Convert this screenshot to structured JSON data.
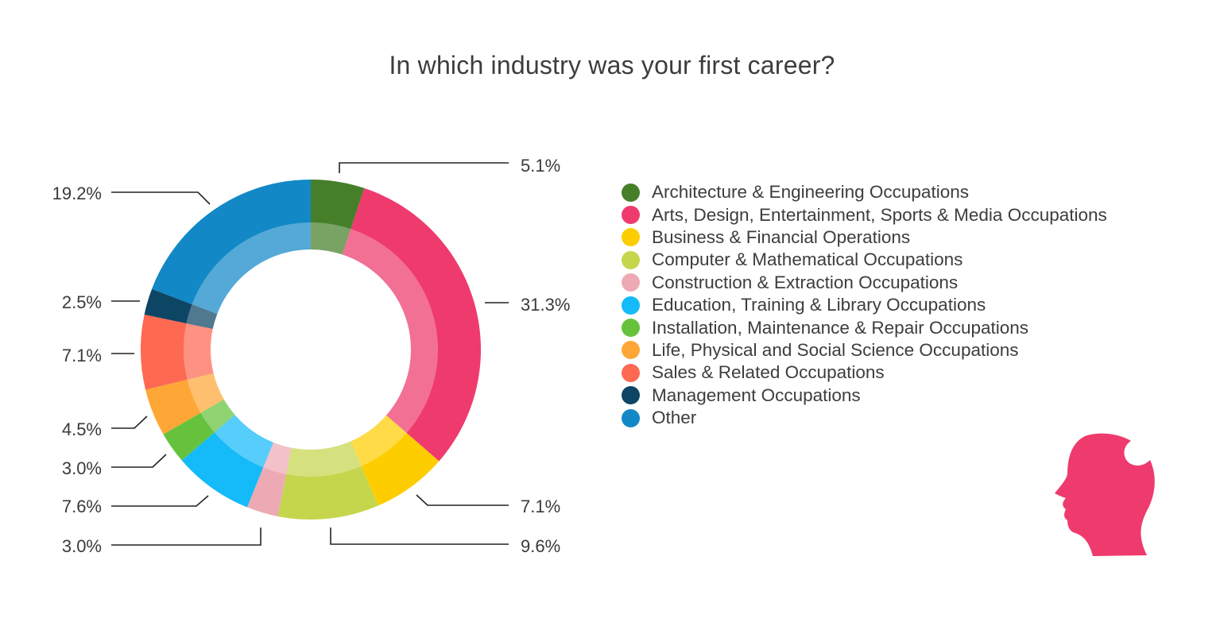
{
  "chart_data": {
    "type": "pie",
    "variant": "donut",
    "title": "In which industry was your first career?",
    "slices": [
      {
        "name": "Architecture & Engineering Occupations",
        "value": 5.1,
        "label": "5.1%",
        "color": "#467f2a"
      },
      {
        "name": "Arts, Design, Entertainment, Sports & Media Occupations",
        "value": 31.3,
        "label": "31.3%",
        "color": "#ef3a6d"
      },
      {
        "name": "Business & Financial Operations",
        "value": 7.1,
        "label": "7.1%",
        "color": "#fecd00"
      },
      {
        "name": "Computer & Mathematical Occupations",
        "value": 9.6,
        "label": "9.6%",
        "color": "#c5d64d"
      },
      {
        "name": "Construction & Extraction Occupations",
        "value": 3.0,
        "label": "3.0%",
        "color": "#edaab4"
      },
      {
        "name": "Education, Training & Library Occupations",
        "value": 7.6,
        "label": "7.6%",
        "color": "#15baf8"
      },
      {
        "name": "Installation, Maintenance & Repair Occupations",
        "value": 3.0,
        "label": "3.0%",
        "color": "#66c23d"
      },
      {
        "name": "Life, Physical and Social Science Occupations",
        "value": 4.5,
        "label": "4.5%",
        "color": "#fea737"
      },
      {
        "name": "Sales & Related Occupations",
        "value": 7.1,
        "label": "7.1%",
        "color": "#fe6952"
      },
      {
        "name": "Management Occupations",
        "value": 2.5,
        "label": "2.5%",
        "color": "#0d4565"
      },
      {
        "name": "Other",
        "value": 19.2,
        "label": "19.2%",
        "color": "#1288c6"
      }
    ],
    "legend_position": "right"
  },
  "logo": {
    "name": "head-silhouette-icon",
    "color": "#ef3a6d"
  }
}
